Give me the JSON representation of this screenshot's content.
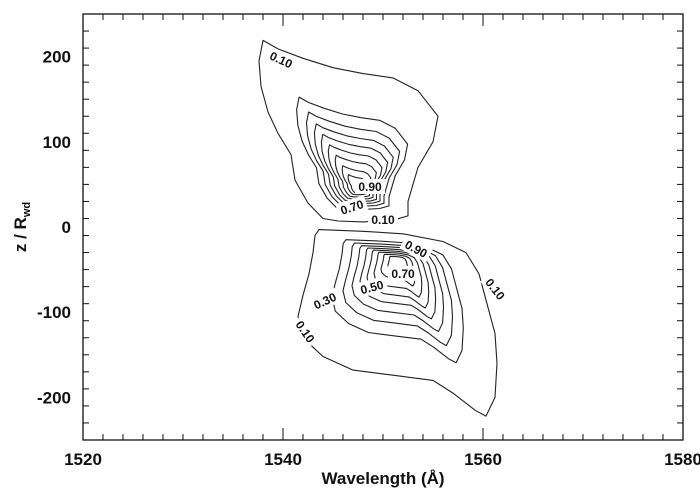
{
  "chart_data": {
    "type": "contour",
    "xlabel": "Wavelength (Å)",
    "ylabel_main": "z / R",
    "ylabel_sub": "wd",
    "xlim": [
      1520,
      1580
    ],
    "ylim": [
      -250,
      250
    ],
    "x_ticks": [
      1520,
      1540,
      1560,
      1580
    ],
    "x_tick_labels": [
      "1520",
      "1540",
      "1560",
      "1580"
    ],
    "y_ticks": [
      -200,
      -100,
      0,
      100,
      200
    ],
    "y_tick_labels": [
      "-200",
      "-100",
      "0",
      "100",
      "200"
    ],
    "x_minor_step": 2,
    "y_minor_step": 20,
    "grid": false,
    "levels": [
      0.1,
      0.2,
      0.3,
      0.4,
      0.5,
      0.6,
      0.7,
      0.8,
      0.9
    ],
    "contour_labels": [
      {
        "text": "0.10",
        "x": 1539.8,
        "y": 196,
        "angle": 25
      },
      {
        "text": "0.90",
        "x": 1548.7,
        "y": 47,
        "angle": 0
      },
      {
        "text": "0.70",
        "x": 1546.9,
        "y": 23,
        "angle": -18
      },
      {
        "text": "0.10",
        "x": 1550.0,
        "y": 8,
        "angle": 0
      },
      {
        "text": "0.90",
        "x": 1553.3,
        "y": -26,
        "angle": 28
      },
      {
        "text": "0.70",
        "x": 1552.0,
        "y": -55,
        "angle": 0
      },
      {
        "text": "0.50",
        "x": 1548.9,
        "y": -71,
        "angle": -15
      },
      {
        "text": "0.30",
        "x": 1544.2,
        "y": -87,
        "angle": -25
      },
      {
        "text": "0.10",
        "x": 1561.2,
        "y": -73,
        "angle": 52
      },
      {
        "text": "0.10",
        "x": 1542.2,
        "y": -123,
        "angle": 55
      }
    ],
    "upper_lobe": {
      "center": [
        1547.5,
        44
      ],
      "outer": [
        [
          1538,
          219
        ],
        [
          1539.5,
          209
        ],
        [
          1542,
          198
        ],
        [
          1545,
          187
        ],
        [
          1548,
          180
        ],
        [
          1551,
          175
        ],
        [
          1553.5,
          160
        ],
        [
          1555.5,
          130
        ],
        [
          1555,
          100
        ],
        [
          1553.5,
          70
        ],
        [
          1553,
          50
        ],
        [
          1552.5,
          30
        ],
        [
          1552.5,
          13
        ],
        [
          1551,
          8
        ],
        [
          1548,
          6
        ],
        [
          1545.5,
          7
        ],
        [
          1544,
          10
        ],
        [
          1542.5,
          28
        ],
        [
          1541.2,
          55
        ],
        [
          1540.8,
          85
        ],
        [
          1539.5,
          110
        ],
        [
          1538.5,
          135
        ],
        [
          1537.8,
          165
        ],
        [
          1537.6,
          195
        ],
        [
          1538,
          219
        ]
      ]
    },
    "lower_lobe": {
      "center": [
        1551.5,
        -38
      ],
      "outer": [
        [
          1543.6,
          -3
        ],
        [
          1548,
          -5
        ],
        [
          1552,
          -8
        ],
        [
          1556,
          -17
        ],
        [
          1558.3,
          -30
        ],
        [
          1559.6,
          -55
        ],
        [
          1560.4,
          -90
        ],
        [
          1561.2,
          -125
        ],
        [
          1561.4,
          -160
        ],
        [
          1561.2,
          -200
        ],
        [
          1560.3,
          -222
        ],
        [
          1559.2,
          -215
        ],
        [
          1557,
          -195
        ],
        [
          1555,
          -180
        ],
        [
          1551,
          -174
        ],
        [
          1547,
          -168
        ],
        [
          1544,
          -152
        ],
        [
          1542,
          -130
        ],
        [
          1541.5,
          -105
        ],
        [
          1542,
          -80
        ],
        [
          1542.6,
          -55
        ],
        [
          1543,
          -30
        ],
        [
          1543.2,
          -10
        ],
        [
          1543.6,
          -3
        ]
      ]
    }
  }
}
